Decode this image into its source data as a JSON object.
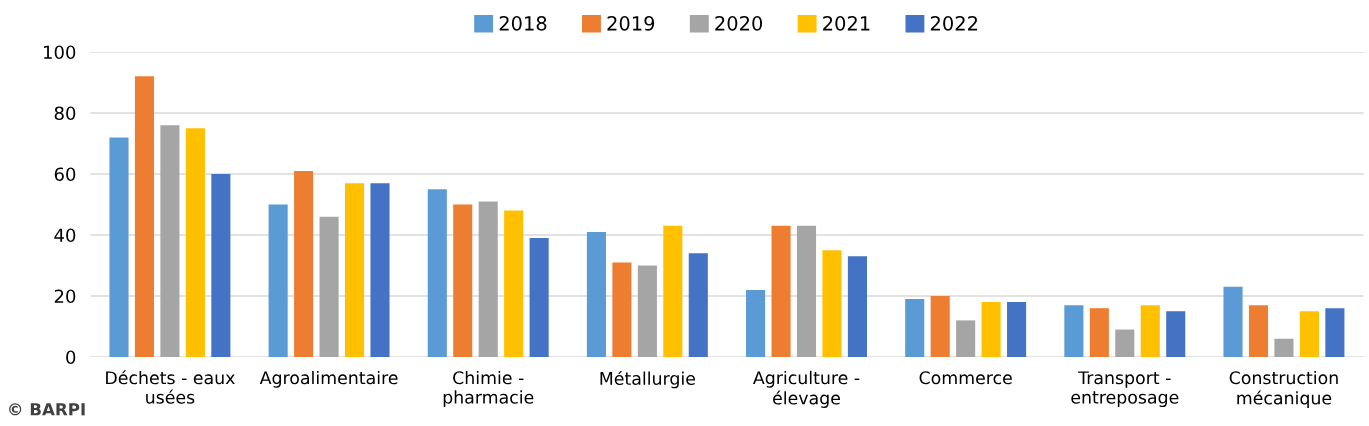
{
  "chart_data": {
    "type": "bar",
    "categories": [
      "Déchets - eaux\nusées",
      "Agroalimentaire",
      "Chimie -\npharmacie",
      "Métallurgie",
      "Agriculture -\nélevage",
      "Commerce",
      "Transport -\nentreposage",
      "Construction\nmécanique"
    ],
    "series": [
      {
        "name": "2018",
        "color": "#5b9bd5",
        "values": [
          72,
          50,
          55,
          41,
          22,
          19,
          17,
          23
        ]
      },
      {
        "name": "2019",
        "color": "#ed7d31",
        "values": [
          92,
          61,
          50,
          31,
          43,
          20,
          16,
          17
        ]
      },
      {
        "name": "2020",
        "color": "#a5a5a5",
        "values": [
          76,
          46,
          51,
          30,
          43,
          12,
          9,
          6
        ]
      },
      {
        "name": "2021",
        "color": "#ffc000",
        "values": [
          75,
          57,
          48,
          43,
          35,
          18,
          17,
          15
        ]
      },
      {
        "name": "2022",
        "color": "#4472c4",
        "values": [
          60,
          57,
          39,
          34,
          33,
          18,
          15,
          16
        ]
      }
    ],
    "ylim": [
      0,
      100
    ],
    "yticks": [
      0,
      20,
      40,
      60,
      80,
      100
    ],
    "grid": "y",
    "legend": "top",
    "annotations": [
      "© BARPI"
    ]
  }
}
